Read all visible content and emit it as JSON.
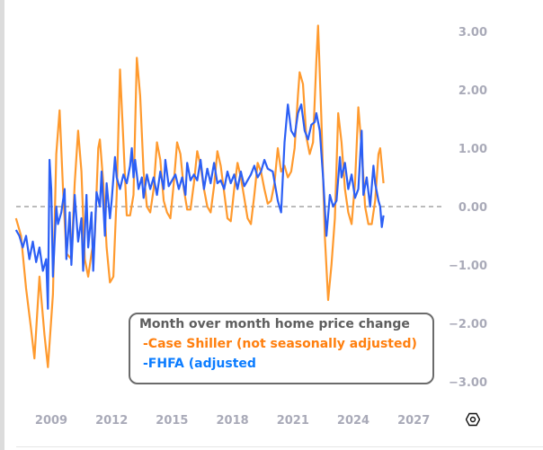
{
  "chart_data": {
    "type": "line",
    "title": "Month over month home price change",
    "xlabel": "",
    "ylabel": "",
    "x_ticks": [
      "2009",
      "2012",
      "2015",
      "2018",
      "2021",
      "2024",
      "2027"
    ],
    "y_ticks": [
      "3.00",
      "2.00",
      "1.00",
      "0.00",
      "-1.00",
      "-2.00",
      "-3.00"
    ],
    "ylim": [
      -3.3,
      3.3
    ],
    "xlim": [
      "2007-02",
      "2028-06"
    ],
    "y_axis_side": "right",
    "grid": false,
    "zero_line": "dashed",
    "legend_placement": "bottom-center",
    "series": [
      {
        "name": "-Case Shiller (not seasonally adjusted)",
        "color": "#ff9a2e",
        "points": [
          [
            "2007-04",
            -0.2
          ],
          [
            "2007-07",
            -0.5
          ],
          [
            "2007-10",
            -1.4
          ],
          [
            "2008-01",
            -2.1
          ],
          [
            "2008-03",
            -2.6
          ],
          [
            "2008-06",
            -1.2
          ],
          [
            "2008-09",
            -2.2
          ],
          [
            "2008-11",
            -2.75
          ],
          [
            "2009-02",
            -1.5
          ],
          [
            "2009-04",
            0.9
          ],
          [
            "2009-06",
            1.65
          ],
          [
            "2009-08",
            0.3
          ],
          [
            "2009-10",
            -0.8
          ],
          [
            "2010-01",
            -0.9
          ],
          [
            "2010-03",
            0.4
          ],
          [
            "2010-05",
            1.3
          ],
          [
            "2010-07",
            0.6
          ],
          [
            "2010-09",
            -0.9
          ],
          [
            "2010-11",
            -1.2
          ],
          [
            "2011-01",
            -0.8
          ],
          [
            "2011-03",
            -0.5
          ],
          [
            "2011-05",
            1.0
          ],
          [
            "2011-06",
            1.15
          ],
          [
            "2011-08",
            0.4
          ],
          [
            "2011-10",
            -0.7
          ],
          [
            "2011-12",
            -1.3
          ],
          [
            "2012-02",
            -1.2
          ],
          [
            "2012-04",
            0.2
          ],
          [
            "2012-06",
            2.35
          ],
          [
            "2012-08",
            1.1
          ],
          [
            "2012-10",
            -0.15
          ],
          [
            "2012-12",
            -0.15
          ],
          [
            "2013-02",
            0.2
          ],
          [
            "2013-04",
            2.55
          ],
          [
            "2013-06",
            1.9
          ],
          [
            "2013-08",
            0.6
          ],
          [
            "2013-10",
            0.0
          ],
          [
            "2013-12",
            -0.1
          ],
          [
            "2014-02",
            0.3
          ],
          [
            "2014-04",
            1.1
          ],
          [
            "2014-06",
            0.8
          ],
          [
            "2014-08",
            0.1
          ],
          [
            "2014-10",
            -0.1
          ],
          [
            "2014-12",
            -0.2
          ],
          [
            "2015-02",
            0.4
          ],
          [
            "2015-04",
            1.1
          ],
          [
            "2015-06",
            0.9
          ],
          [
            "2015-08",
            0.3
          ],
          [
            "2015-10",
            -0.05
          ],
          [
            "2015-12",
            -0.05
          ],
          [
            "2016-02",
            0.4
          ],
          [
            "2016-04",
            0.95
          ],
          [
            "2016-06",
            0.7
          ],
          [
            "2016-08",
            0.3
          ],
          [
            "2016-10",
            0.0
          ],
          [
            "2016-12",
            -0.1
          ],
          [
            "2017-02",
            0.35
          ],
          [
            "2017-04",
            0.95
          ],
          [
            "2017-06",
            0.7
          ],
          [
            "2017-08",
            0.25
          ],
          [
            "2017-10",
            -0.2
          ],
          [
            "2017-12",
            -0.25
          ],
          [
            "2018-02",
            0.3
          ],
          [
            "2018-04",
            0.75
          ],
          [
            "2018-06",
            0.5
          ],
          [
            "2018-08",
            0.15
          ],
          [
            "2018-10",
            -0.2
          ],
          [
            "2018-12",
            -0.3
          ],
          [
            "2019-02",
            0.2
          ],
          [
            "2019-04",
            0.75
          ],
          [
            "2019-06",
            0.6
          ],
          [
            "2019-08",
            0.3
          ],
          [
            "2019-10",
            0.05
          ],
          [
            "2019-12",
            0.1
          ],
          [
            "2020-02",
            0.4
          ],
          [
            "2020-04",
            1.0
          ],
          [
            "2020-06",
            0.6
          ],
          [
            "2020-08",
            0.7
          ],
          [
            "2020-10",
            0.5
          ],
          [
            "2020-12",
            0.6
          ],
          [
            "2021-02",
            1.0
          ],
          [
            "2021-04",
            1.9
          ],
          [
            "2021-05",
            2.3
          ],
          [
            "2021-07",
            2.1
          ],
          [
            "2021-09",
            1.2
          ],
          [
            "2021-11",
            0.9
          ],
          [
            "2022-01",
            1.1
          ],
          [
            "2022-03",
            2.5
          ],
          [
            "2022-04",
            3.1
          ],
          [
            "2022-06",
            1.5
          ],
          [
            "2022-08",
            -0.5
          ],
          [
            "2022-10",
            -1.6
          ],
          [
            "2022-12",
            -1.0
          ],
          [
            "2023-02",
            -0.2
          ],
          [
            "2023-04",
            1.6
          ],
          [
            "2023-06",
            1.1
          ],
          [
            "2023-08",
            0.3
          ],
          [
            "2023-10",
            -0.1
          ],
          [
            "2023-12",
            -0.3
          ],
          [
            "2024-02",
            0.4
          ],
          [
            "2024-04",
            1.7
          ],
          [
            "2024-06",
            1.0
          ],
          [
            "2024-08",
            0.0
          ],
          [
            "2024-10",
            -0.3
          ],
          [
            "2024-12",
            -0.3
          ],
          [
            "2025-02",
            0.1
          ],
          [
            "2025-04",
            0.9
          ],
          [
            "2025-05",
            1.0
          ],
          [
            "2025-07",
            0.4
          ]
        ]
      },
      {
        "name": "-FHFA (adjusted",
        "color": "#2b5ff5",
        "points": [
          [
            "2007-04",
            -0.4
          ],
          [
            "2007-06",
            -0.5
          ],
          [
            "2007-08",
            -0.7
          ],
          [
            "2007-10",
            -0.5
          ],
          [
            "2007-12",
            -0.9
          ],
          [
            "2008-02",
            -0.6
          ],
          [
            "2008-04",
            -0.95
          ],
          [
            "2008-06",
            -0.7
          ],
          [
            "2008-08",
            -1.1
          ],
          [
            "2008-10",
            -0.9
          ],
          [
            "2008-11",
            -1.75
          ],
          [
            "2008-12",
            0.8
          ],
          [
            "2009-01",
            0.3
          ],
          [
            "2009-02",
            -1.2
          ],
          [
            "2009-04",
            0.0
          ],
          [
            "2009-05",
            -0.3
          ],
          [
            "2009-07",
            -0.1
          ],
          [
            "2009-09",
            0.3
          ],
          [
            "2009-10",
            -0.9
          ],
          [
            "2009-12",
            -0.1
          ],
          [
            "2010-01",
            -1.0
          ],
          [
            "2010-03",
            0.2
          ],
          [
            "2010-05",
            -0.6
          ],
          [
            "2010-07",
            -0.2
          ],
          [
            "2010-08",
            -1.1
          ],
          [
            "2010-10",
            0.2
          ],
          [
            "2010-11",
            -0.7
          ],
          [
            "2011-01",
            -0.1
          ],
          [
            "2011-02",
            -1.1
          ],
          [
            "2011-04",
            0.25
          ],
          [
            "2011-06",
            0.0
          ],
          [
            "2011-07",
            0.6
          ],
          [
            "2011-09",
            -0.5
          ],
          [
            "2011-10",
            0.4
          ],
          [
            "2011-12",
            -0.2
          ],
          [
            "2012-01",
            0.1
          ],
          [
            "2012-03",
            0.85
          ],
          [
            "2012-04",
            0.5
          ],
          [
            "2012-06",
            0.3
          ],
          [
            "2012-08",
            0.55
          ],
          [
            "2012-10",
            0.4
          ],
          [
            "2012-12",
            0.7
          ],
          [
            "2013-01",
            1.0
          ],
          [
            "2013-02",
            0.5
          ],
          [
            "2013-03",
            0.8
          ],
          [
            "2013-05",
            0.3
          ],
          [
            "2013-07",
            0.5
          ],
          [
            "2013-08",
            0.15
          ],
          [
            "2013-10",
            0.55
          ],
          [
            "2013-12",
            0.3
          ],
          [
            "2014-02",
            0.5
          ],
          [
            "2014-04",
            0.2
          ],
          [
            "2014-06",
            0.6
          ],
          [
            "2014-08",
            0.3
          ],
          [
            "2014-09",
            0.8
          ],
          [
            "2014-11",
            0.35
          ],
          [
            "2015-01",
            0.45
          ],
          [
            "2015-03",
            0.55
          ],
          [
            "2015-05",
            0.3
          ],
          [
            "2015-07",
            0.5
          ],
          [
            "2015-09",
            0.2
          ],
          [
            "2015-10",
            0.75
          ],
          [
            "2015-12",
            0.45
          ],
          [
            "2016-02",
            0.55
          ],
          [
            "2016-04",
            0.45
          ],
          [
            "2016-06",
            0.8
          ],
          [
            "2016-08",
            0.3
          ],
          [
            "2016-10",
            0.65
          ],
          [
            "2016-12",
            0.4
          ],
          [
            "2017-02",
            0.75
          ],
          [
            "2017-04",
            0.4
          ],
          [
            "2017-06",
            0.45
          ],
          [
            "2017-08",
            0.3
          ],
          [
            "2017-10",
            0.6
          ],
          [
            "2017-12",
            0.4
          ],
          [
            "2018-02",
            0.55
          ],
          [
            "2018-04",
            0.3
          ],
          [
            "2018-06",
            0.6
          ],
          [
            "2018-08",
            0.35
          ],
          [
            "2018-10",
            0.45
          ],
          [
            "2018-12",
            0.55
          ],
          [
            "2019-02",
            0.7
          ],
          [
            "2019-04",
            0.5
          ],
          [
            "2019-06",
            0.6
          ],
          [
            "2019-08",
            0.8
          ],
          [
            "2019-10",
            0.65
          ],
          [
            "2020-01",
            0.6
          ],
          [
            "2020-04",
            0.1
          ],
          [
            "2020-06",
            -0.1
          ],
          [
            "2020-08",
            1.1
          ],
          [
            "2020-10",
            1.75
          ],
          [
            "2020-12",
            1.3
          ],
          [
            "2021-02",
            1.2
          ],
          [
            "2021-04",
            1.6
          ],
          [
            "2021-06",
            1.75
          ],
          [
            "2021-08",
            1.3
          ],
          [
            "2021-10",
            1.15
          ],
          [
            "2021-12",
            1.4
          ],
          [
            "2022-02",
            1.45
          ],
          [
            "2022-03",
            1.6
          ],
          [
            "2022-05",
            1.3
          ],
          [
            "2022-07",
            0.5
          ],
          [
            "2022-09",
            -0.5
          ],
          [
            "2022-11",
            0.2
          ],
          [
            "2023-01",
            0.0
          ],
          [
            "2023-03",
            0.1
          ],
          [
            "2023-05",
            0.85
          ],
          [
            "2023-06",
            0.5
          ],
          [
            "2023-08",
            0.75
          ],
          [
            "2023-10",
            0.3
          ],
          [
            "2023-12",
            0.55
          ],
          [
            "2024-02",
            0.15
          ],
          [
            "2024-04",
            0.3
          ],
          [
            "2024-06",
            1.3
          ],
          [
            "2024-07",
            0.2
          ],
          [
            "2024-09",
            0.5
          ],
          [
            "2024-11",
            0.0
          ],
          [
            "2025-01",
            0.7
          ],
          [
            "2025-02",
            0.4
          ],
          [
            "2025-04",
            0.1
          ],
          [
            "2025-05",
            0.0
          ],
          [
            "2025-06",
            -0.35
          ],
          [
            "2025-07",
            -0.15
          ]
        ]
      }
    ]
  },
  "legend": {
    "title": "Month over month home price change",
    "items": [
      "-Case Shiller (not seasonally adjusted)",
      "-FHFA (adjusted"
    ],
    "text_colors": [
      "#ff7f0e",
      "#0b7cff"
    ]
  },
  "toolbar": {
    "settings_icon": "hexagon-settings-icon"
  }
}
